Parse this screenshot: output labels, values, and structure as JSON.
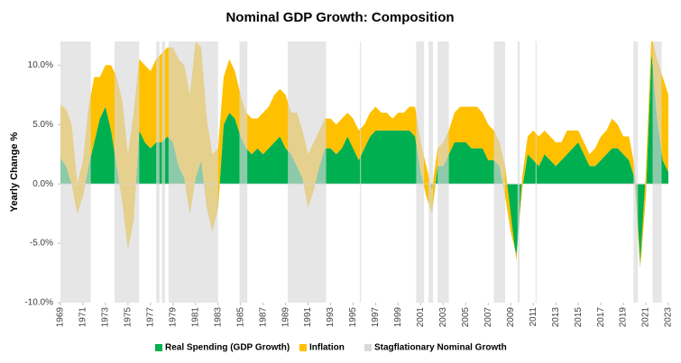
{
  "chart_data": {
    "type": "stacked_area",
    "title": "Nominal GDP Growth: Composition",
    "y_label": "Yearly Change %",
    "x": [
      1969,
      1969.5,
      1970,
      1970.5,
      1971,
      1971.5,
      1972,
      1972.5,
      1973,
      1973.5,
      1974,
      1974.5,
      1975,
      1975.5,
      1976,
      1976.5,
      1977,
      1977.5,
      1978,
      1978.5,
      1979,
      1979.5,
      1980,
      1980.5,
      1981,
      1981.5,
      1982,
      1982.5,
      1983,
      1983.5,
      1984,
      1984.5,
      1985,
      1985.5,
      1986,
      1986.5,
      1987,
      1987.5,
      1988,
      1988.5,
      1989,
      1989.5,
      1990,
      1990.5,
      1991,
      1991.5,
      1992,
      1992.5,
      1993,
      1993.5,
      1994,
      1994.5,
      1995,
      1995.5,
      1996,
      1996.5,
      1997,
      1997.5,
      1998,
      1998.5,
      1999,
      1999.5,
      2000,
      2000.5,
      2001,
      2001.5,
      2002,
      2002.5,
      2003,
      2003.5,
      2004,
      2004.5,
      2005,
      2005.5,
      2006,
      2006.5,
      2007,
      2007.5,
      2008,
      2008.5,
      2009,
      2009.5,
      2010,
      2010.5,
      2011,
      2011.5,
      2012,
      2012.5,
      2013,
      2013.5,
      2014,
      2014.5,
      2015,
      2015.5,
      2016,
      2016.5,
      2017,
      2017.5,
      2018,
      2018.5,
      2019,
      2019.5,
      2020,
      2020.5,
      2021,
      2021.5,
      2022,
      2022.5,
      2023
    ],
    "series": [
      {
        "name": "Real Spending (GDP Growth)",
        "color": "#00b050",
        "values": [
          2.2,
          1.5,
          0.0,
          -2.5,
          -1.0,
          1.5,
          3.5,
          5.5,
          6.5,
          4.5,
          1.5,
          -1.5,
          -5.5,
          -3.0,
          4.5,
          3.5,
          3.0,
          3.5,
          3.5,
          4.0,
          3.5,
          1.5,
          0.5,
          -2.5,
          0.5,
          2.0,
          -2.0,
          -4.0,
          -2.0,
          5.0,
          6.0,
          5.5,
          4.0,
          3.0,
          2.5,
          3.0,
          2.5,
          3.0,
          3.5,
          4.0,
          3.0,
          2.5,
          1.5,
          0.5,
          -2.0,
          -0.5,
          1.5,
          3.0,
          3.0,
          2.5,
          3.0,
          4.0,
          3.0,
          2.0,
          3.0,
          4.0,
          4.5,
          4.5,
          4.5,
          4.5,
          4.5,
          4.5,
          4.5,
          4.0,
          1.0,
          -1.0,
          -2.5,
          1.5,
          1.5,
          2.5,
          3.5,
          3.5,
          3.5,
          3.0,
          3.0,
          3.0,
          2.0,
          2.0,
          1.5,
          -1.0,
          -4.0,
          -6.0,
          -0.5,
          2.5,
          2.0,
          1.5,
          2.5,
          2.0,
          1.5,
          2.0,
          2.5,
          3.0,
          3.5,
          2.5,
          1.5,
          1.5,
          2.0,
          2.5,
          3.0,
          3.0,
          2.5,
          2.0,
          0.5,
          -7.0,
          -1.0,
          11.0,
          5.5,
          2.0,
          1.0
        ]
      },
      {
        "name": "Inflation",
        "color": "#ffc000",
        "values": [
          4.5,
          4.8,
          5.0,
          2.5,
          3.0,
          5.0,
          5.5,
          3.5,
          3.5,
          5.5,
          7.5,
          8.5,
          8.0,
          9.0,
          6.0,
          6.5,
          6.5,
          7.0,
          7.5,
          7.5,
          8.0,
          9.0,
          9.5,
          10.0,
          11.5,
          9.5,
          7.5,
          6.5,
          5.0,
          4.0,
          4.5,
          4.0,
          3.5,
          3.0,
          3.0,
          2.5,
          3.5,
          3.5,
          4.0,
          4.0,
          4.5,
          3.5,
          4.5,
          4.0,
          4.5,
          4.0,
          3.0,
          2.5,
          2.5,
          2.5,
          2.5,
          2.0,
          2.5,
          2.5,
          2.0,
          2.0,
          2.0,
          1.5,
          1.5,
          1.0,
          1.5,
          1.5,
          2.0,
          2.5,
          2.5,
          2.5,
          2.0,
          1.5,
          2.0,
          2.0,
          2.5,
          3.0,
          3.0,
          3.5,
          3.5,
          3.0,
          3.0,
          2.5,
          2.0,
          2.5,
          1.5,
          -0.5,
          1.0,
          1.5,
          2.5,
          2.5,
          2.0,
          2.0,
          2.0,
          1.5,
          2.0,
          1.5,
          1.0,
          1.0,
          1.0,
          1.5,
          2.0,
          2.0,
          2.5,
          2.0,
          1.5,
          2.0,
          1.0,
          0.5,
          2.0,
          1.5,
          5.0,
          7.0,
          6.5
        ]
      }
    ],
    "shading": {
      "name": "Stagflationary Nominal Growth",
      "color": "#d9d9d9",
      "periods": [
        [
          1969,
          1971.7
        ],
        [
          1973.8,
          1976
        ],
        [
          1977.5,
          1977.8
        ],
        [
          1978,
          1978.3
        ],
        [
          1978.6,
          1983
        ],
        [
          1984.9,
          1985.6
        ],
        [
          1989.2,
          1992.6
        ],
        [
          1995.6,
          1995.7
        ],
        [
          2000.6,
          2001.3
        ],
        [
          2001.7,
          2002.1
        ],
        [
          2002.5,
          2003.5
        ],
        [
          2007.5,
          2008.5
        ],
        [
          2009.6,
          2009.8
        ],
        [
          2011.2,
          2011.3
        ],
        [
          2019.9,
          2020.3
        ],
        [
          2021.6,
          2022.4
        ]
      ]
    },
    "xlim": [
      1969,
      2023
    ],
    "xticks": [
      1969,
      1971,
      1973,
      1975,
      1977,
      1979,
      1981,
      1983,
      1985,
      1987,
      1989,
      1991,
      1993,
      1995,
      1997,
      1999,
      2001,
      2003,
      2005,
      2007,
      2009,
      2011,
      2013,
      2015,
      2017,
      2019,
      2021,
      2023
    ],
    "ylim": [
      -10,
      12
    ],
    "yticks": [
      {
        "value": -10,
        "label": "-10.0%"
      },
      {
        "value": -5,
        "label": "-5.0%"
      },
      {
        "value": 0,
        "label": "0.0%"
      },
      {
        "value": 5,
        "label": "5.0%"
      },
      {
        "value": 10,
        "label": "10.0%"
      }
    ],
    "legend": "bottom"
  }
}
